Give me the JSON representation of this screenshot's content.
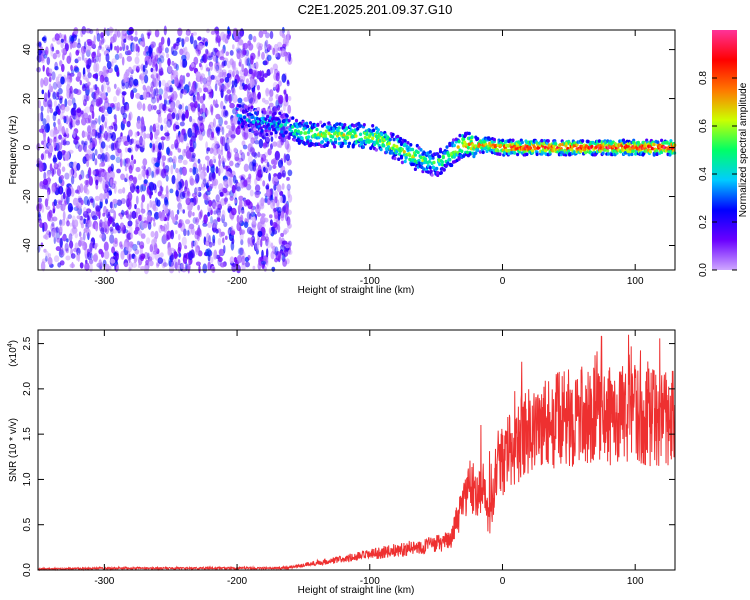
{
  "page_title": "C2E1.2025.201.09.37.G10",
  "colors": {
    "snr_line": "#ee3030",
    "spectrogram_low": "#e6d2f5",
    "spectrogram_mid": "#6a00ff",
    "colorbar_stops": [
      "#cfa8ff",
      "#6a00ff",
      "#0000ff",
      "#00ccff",
      "#00ff66",
      "#ccff00",
      "#ff7700",
      "#ff0000",
      "#ff3399"
    ]
  },
  "chart_data": [
    {
      "type": "heatmap",
      "title": "C2E1.2025.201.09.37.G10",
      "xlabel": "Height of straight line (km)",
      "ylabel": "Frequency (Hz)",
      "xlim": [
        -350,
        130
      ],
      "ylim": [
        -50,
        48
      ],
      "x_ticks": [
        -300,
        -200,
        -100,
        0,
        100
      ],
      "x_tick_labels": [
        "-300",
        "-200",
        "-100",
        "0",
        "100"
      ],
      "y_ticks": [
        -40,
        -20,
        0,
        20,
        40
      ],
      "y_tick_labels": [
        "-40",
        "-20",
        "0",
        "20",
        "40"
      ],
      "colorbar": {
        "label": "Normalized spectral amplitude",
        "range": [
          0.0,
          1.0
        ],
        "ticks": [
          0.0,
          0.2,
          0.4,
          0.6,
          0.8
        ],
        "tick_labels": [
          "0.0",
          "0.2",
          "0.4",
          "0.6",
          "0.8"
        ]
      },
      "noise_region_x": [
        -350,
        -160
      ],
      "signal_track": [
        {
          "x": -200,
          "f": 13,
          "amp": 0.35
        },
        {
          "x": -175,
          "f": 10,
          "amp": 0.35
        },
        {
          "x": -160,
          "f": 8,
          "amp": 0.45
        },
        {
          "x": -150,
          "f": 6,
          "amp": 0.55
        },
        {
          "x": -130,
          "f": 5,
          "amp": 0.6
        },
        {
          "x": -110,
          "f": 5,
          "amp": 0.6
        },
        {
          "x": -95,
          "f": 4,
          "amp": 0.6
        },
        {
          "x": -80,
          "f": 0,
          "amp": 0.6
        },
        {
          "x": -70,
          "f": -3,
          "amp": 0.6
        },
        {
          "x": -60,
          "f": -5,
          "amp": 0.55
        },
        {
          "x": -50,
          "f": -7,
          "amp": 0.5
        },
        {
          "x": -40,
          "f": -3,
          "amp": 0.6
        },
        {
          "x": -30,
          "f": 1,
          "amp": 0.7
        },
        {
          "x": -10,
          "f": 1,
          "amp": 0.75
        },
        {
          "x": 0,
          "f": 0,
          "amp": 0.85
        },
        {
          "x": 40,
          "f": 0,
          "amp": 0.9
        },
        {
          "x": 80,
          "f": 0,
          "amp": 0.9
        },
        {
          "x": 130,
          "f": 0,
          "amp": 0.9
        }
      ],
      "grid": false
    },
    {
      "type": "line",
      "xlabel": "Height of straight line (km)",
      "ylabel": "SNR (10 * v/v)",
      "y_scale_label": "(x10",
      "y_scale_exp": "4",
      "xlim": [
        -350,
        130
      ],
      "ylim": [
        0,
        2.65
      ],
      "x_ticks": [
        -300,
        -200,
        -100,
        0,
        100
      ],
      "x_tick_labels": [
        "-300",
        "-200",
        "-100",
        "0",
        "100"
      ],
      "y_ticks": [
        0.0,
        0.5,
        1.0,
        1.5,
        2.0,
        2.5
      ],
      "y_tick_labels": [
        "0.0",
        "0.5",
        "1.0",
        "1.5",
        "2.0",
        "2.5"
      ],
      "series": [
        {
          "x": [
            -350,
            -300,
            -250,
            -200,
            -170,
            -160,
            -140,
            -120,
            -100,
            -80,
            -60,
            -40,
            -30,
            -25,
            -20,
            -15,
            -10,
            -5,
            0,
            10,
            20,
            30,
            40,
            60,
            80,
            100,
            115,
            130
          ],
          "y": [
            0.01,
            0.02,
            0.02,
            0.02,
            0.02,
            0.03,
            0.08,
            0.12,
            0.17,
            0.22,
            0.26,
            0.32,
            0.7,
            0.95,
            0.85,
            0.95,
            0.5,
            1.0,
            1.2,
            1.4,
            1.55,
            1.6,
            1.65,
            1.7,
            1.7,
            1.72,
            1.68,
            1.7
          ]
        }
      ],
      "grid": false
    }
  ]
}
